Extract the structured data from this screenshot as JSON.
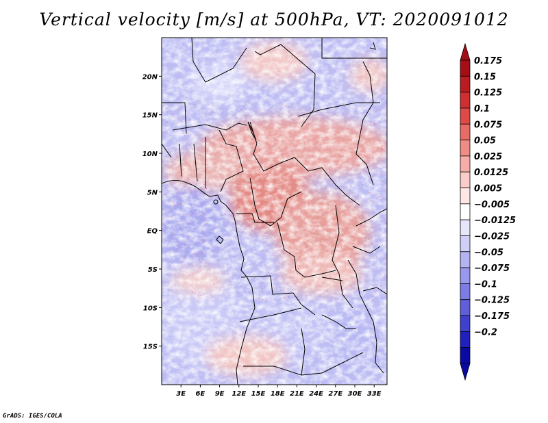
{
  "title": "Vertical velocity [m/s] at 500hPa, VT: 2020091012",
  "credit": "GrADS: IGES/COLA",
  "map": {
    "projection": "lat-lon",
    "lon_range": [
      0,
      35
    ],
    "lat_range": [
      -20,
      25
    ],
    "lon_ticks": [
      {
        "value": 3,
        "label": "3E"
      },
      {
        "value": 6,
        "label": "6E"
      },
      {
        "value": 9,
        "label": "9E"
      },
      {
        "value": 12,
        "label": "12E"
      },
      {
        "value": 15,
        "label": "15E"
      },
      {
        "value": 18,
        "label": "18E"
      },
      {
        "value": 21,
        "label": "21E"
      },
      {
        "value": 24,
        "label": "24E"
      },
      {
        "value": 27,
        "label": "27E"
      },
      {
        "value": 30,
        "label": "30E"
      },
      {
        "value": 33,
        "label": "33E"
      }
    ],
    "lat_ticks": [
      {
        "value": 20,
        "label": "20N"
      },
      {
        "value": 15,
        "label": "15N"
      },
      {
        "value": 10,
        "label": "10N"
      },
      {
        "value": 5,
        "label": "5N"
      },
      {
        "value": 0,
        "label": "EQ"
      },
      {
        "value": -5,
        "label": "5S"
      },
      {
        "value": -10,
        "label": "10S"
      },
      {
        "value": -15,
        "label": "15S"
      }
    ],
    "field": "vertical velocity",
    "units": "m/s",
    "level": "500hPa",
    "valid_time": "2020091012"
  },
  "colorbar": {
    "orientation": "vertical",
    "extend": "both",
    "levels": [
      "0.175",
      "0.15",
      "0.125",
      "0.1",
      "0.075",
      "0.05",
      "0.025",
      "0.0125",
      "0.005",
      "-0.005",
      "-0.0125",
      "-0.025",
      "-0.05",
      "-0.075",
      "-0.1",
      "-0.125",
      "-0.175",
      "-0.2"
    ],
    "colors": [
      "#a50e14",
      "#bb1c22",
      "#cf2f31",
      "#de4b47",
      "#e86b65",
      "#f08c86",
      "#f6ada9",
      "#fbcdca",
      "#fde8e6",
      "#ffffff",
      "#e7e7fb",
      "#cfcff7",
      "#b4b4f2",
      "#9898ec",
      "#7c7ce6",
      "#5f5fdc",
      "#4040cf",
      "#2020bd",
      "#0a0aa3"
    ],
    "top_cap_color": "#a50e14",
    "bottom_cap_color": "#0a0aa3"
  }
}
